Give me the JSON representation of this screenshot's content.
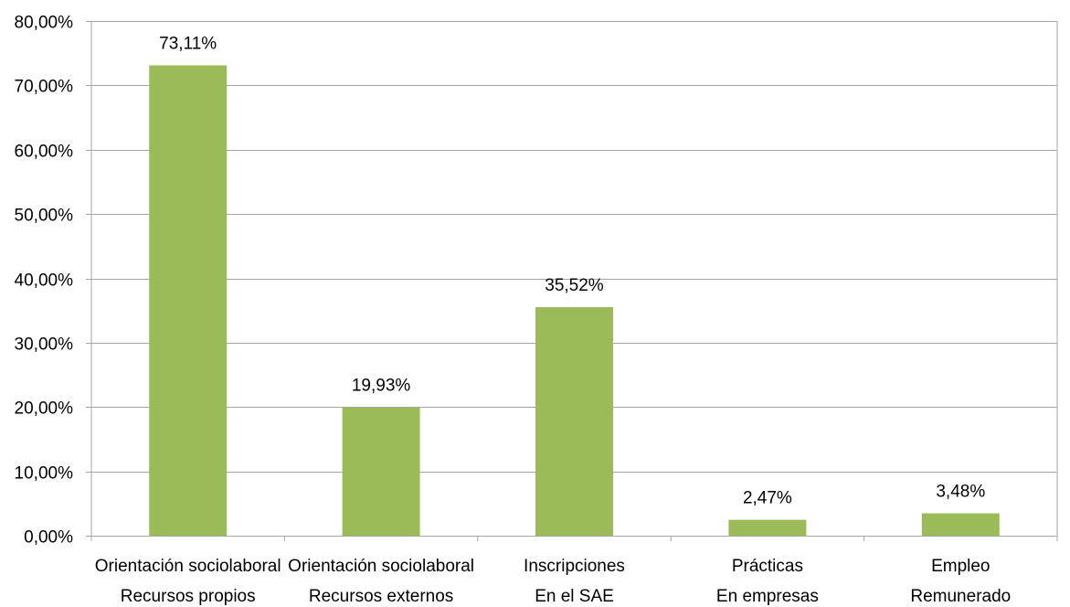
{
  "chart_data": {
    "type": "bar",
    "title": "",
    "xlabel": "",
    "ylabel": "",
    "categories": [
      [
        "Orientación sociolaboral",
        "Recursos propios"
      ],
      [
        "Orientación sociolaboral",
        "Recursos externos"
      ],
      [
        "Inscripciones",
        "En el SAE"
      ],
      [
        "Prácticas",
        "En empresas"
      ],
      [
        "Empleo",
        "Remunerado"
      ]
    ],
    "values": [
      73.11,
      19.93,
      35.52,
      2.47,
      3.48
    ],
    "value_labels": [
      "73,11%",
      "19,93%",
      "35,52%",
      "2,47%",
      "3,48%"
    ],
    "ylim": [
      0,
      80
    ],
    "y_ticks": [
      {
        "value": 0,
        "label": "0,00%"
      },
      {
        "value": 10,
        "label": "10,00%"
      },
      {
        "value": 20,
        "label": "20,00%"
      },
      {
        "value": 30,
        "label": "30,00%"
      },
      {
        "value": 40,
        "label": "40,00%"
      },
      {
        "value": 50,
        "label": "50,00%"
      },
      {
        "value": 60,
        "label": "60,00%"
      },
      {
        "value": 70,
        "label": "70,00%"
      },
      {
        "value": 80,
        "label": "80,00%"
      }
    ],
    "grid": true,
    "legend": "none",
    "bar_color": "#9bbb59",
    "grid_color": "#a6a6a6"
  }
}
